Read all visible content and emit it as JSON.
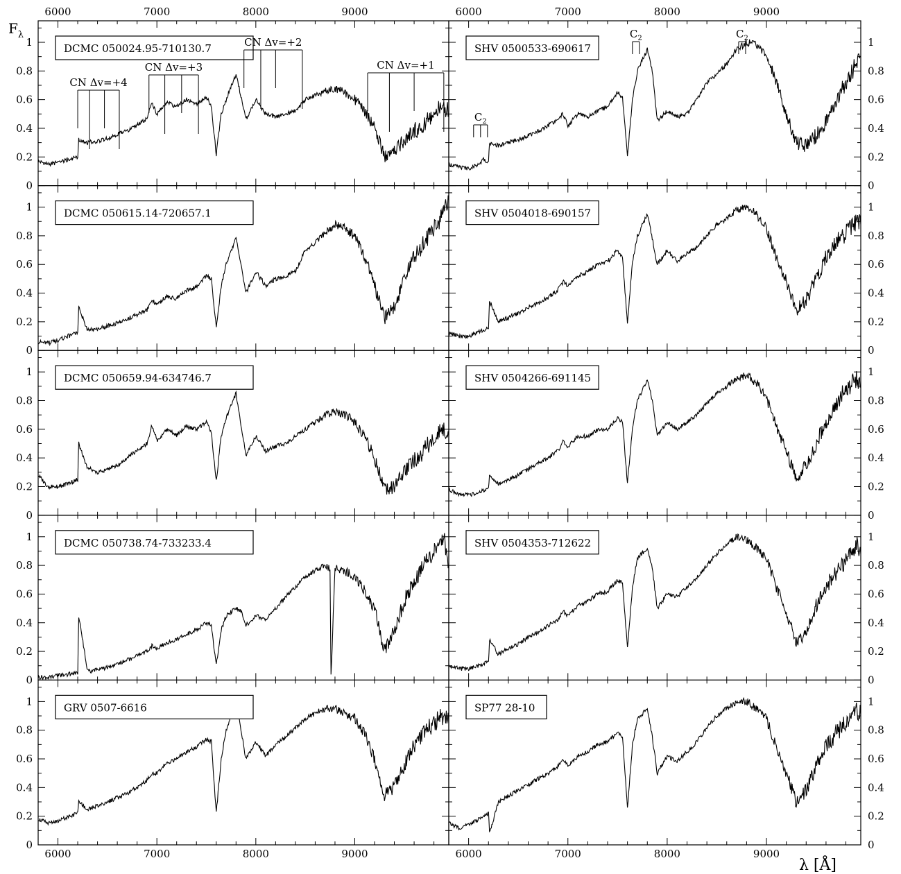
{
  "figure": {
    "ylabel_main": "F",
    "ylabel_sub": "λ",
    "xlabel": "λ [Å]",
    "x_ticks": [
      "6000",
      "7000",
      "8000",
      "9000"
    ],
    "y_ticks": [
      "0",
      "0.2",
      "0.4",
      "0.6",
      "0.8",
      "1"
    ]
  },
  "chart_data": {
    "type": "line",
    "layout": "5 rows x 2 columns of spectra, shared axes",
    "xlim": [
      5800,
      9950
    ],
    "ylim": [
      0,
      1.15
    ],
    "x_ticks": [
      6000,
      7000,
      8000,
      9000
    ],
    "y_ticks": [
      0,
      0.2,
      0.4,
      0.6,
      0.8,
      1
    ],
    "xlabel": "λ [Å]",
    "ylabel": "Fλ",
    "grid": false,
    "panels": [
      {
        "name": "DCMC 050024.95-710130.7",
        "column": "left",
        "row": 1,
        "x": [
          5800,
          5900,
          6000,
          6100,
          6200,
          6210,
          6300,
          6400,
          6500,
          6600,
          6700,
          6800,
          6900,
          6950,
          7000,
          7100,
          7200,
          7300,
          7400,
          7500,
          7550,
          7600,
          7650,
          7700,
          7800,
          7850,
          7900,
          8000,
          8100,
          8200,
          8300,
          8400,
          8500,
          8600,
          8700,
          8800,
          8900,
          9000,
          9100,
          9200,
          9300,
          9400,
          9500,
          9600,
          9700,
          9800,
          9900,
          9950
        ],
        "y": [
          0.17,
          0.15,
          0.16,
          0.18,
          0.2,
          0.32,
          0.3,
          0.31,
          0.33,
          0.36,
          0.38,
          0.42,
          0.47,
          0.58,
          0.5,
          0.58,
          0.55,
          0.6,
          0.57,
          0.62,
          0.55,
          0.22,
          0.5,
          0.6,
          0.78,
          0.62,
          0.46,
          0.6,
          0.5,
          0.48,
          0.5,
          0.52,
          0.6,
          0.63,
          0.66,
          0.68,
          0.65,
          0.6,
          0.52,
          0.4,
          0.2,
          0.25,
          0.32,
          0.38,
          0.42,
          0.5,
          0.55,
          0.5
        ],
        "annotations": [
          {
            "label": "CN Δv=+4",
            "lines_x": [
              6200,
              6320,
              6470,
              6620
            ]
          },
          {
            "label": "CN Δv=+3",
            "lines_x": [
              6920,
              7080,
              7250,
              7420
            ]
          },
          {
            "label": "CN Δv=+2",
            "lines_x": [
              7880,
              8050,
              8200,
              8470
            ]
          },
          {
            "label": "CN Δv=+1",
            "lines_x": [
              9130,
              9350,
              9600,
              9900
            ]
          }
        ]
      },
      {
        "name": "DCMC 050615.14-720657.1",
        "column": "left",
        "row": 2,
        "x": [
          5800,
          5900,
          6000,
          6100,
          6200,
          6210,
          6300,
          6400,
          6500,
          6600,
          6700,
          6800,
          6900,
          6950,
          7000,
          7100,
          7200,
          7300,
          7400,
          7500,
          7550,
          7600,
          7650,
          7700,
          7800,
          7850,
          7900,
          8000,
          8100,
          8200,
          8300,
          8400,
          8500,
          8600,
          8700,
          8800,
          8900,
          9000,
          9100,
          9200,
          9300,
          9400,
          9500,
          9600,
          9700,
          9800,
          9900,
          9950
        ],
        "y": [
          0.06,
          0.05,
          0.07,
          0.1,
          0.12,
          0.3,
          0.14,
          0.15,
          0.17,
          0.19,
          0.22,
          0.25,
          0.28,
          0.35,
          0.32,
          0.38,
          0.36,
          0.42,
          0.44,
          0.52,
          0.5,
          0.16,
          0.45,
          0.6,
          0.78,
          0.6,
          0.4,
          0.55,
          0.45,
          0.5,
          0.52,
          0.55,
          0.7,
          0.75,
          0.82,
          0.88,
          0.85,
          0.8,
          0.65,
          0.45,
          0.22,
          0.3,
          0.5,
          0.65,
          0.75,
          0.85,
          0.95,
          1.05
        ]
      },
      {
        "name": "DCMC 050659.94-634746.7",
        "column": "left",
        "row": 3,
        "x": [
          5800,
          5900,
          6000,
          6100,
          6200,
          6210,
          6300,
          6400,
          6500,
          6600,
          6700,
          6800,
          6900,
          6950,
          7000,
          7100,
          7200,
          7300,
          7400,
          7500,
          7550,
          7600,
          7650,
          7700,
          7800,
          7850,
          7900,
          8000,
          8100,
          8200,
          8300,
          8400,
          8500,
          8600,
          8700,
          8800,
          8900,
          9000,
          9100,
          9200,
          9300,
          9400,
          9500,
          9600,
          9700,
          9800,
          9900,
          9950
        ],
        "y": [
          0.28,
          0.2,
          0.2,
          0.22,
          0.25,
          0.5,
          0.33,
          0.3,
          0.32,
          0.35,
          0.4,
          0.45,
          0.5,
          0.63,
          0.52,
          0.6,
          0.56,
          0.62,
          0.6,
          0.65,
          0.58,
          0.24,
          0.55,
          0.68,
          0.85,
          0.62,
          0.42,
          0.55,
          0.45,
          0.48,
          0.5,
          0.55,
          0.6,
          0.65,
          0.7,
          0.72,
          0.7,
          0.65,
          0.55,
          0.4,
          0.18,
          0.2,
          0.3,
          0.38,
          0.45,
          0.55,
          0.6,
          0.55
        ]
      },
      {
        "name": "DCMC 050738.74-733233.4",
        "column": "left",
        "row": 4,
        "x": [
          5800,
          5900,
          6000,
          6100,
          6200,
          6210,
          6300,
          6400,
          6500,
          6600,
          6700,
          6800,
          6900,
          6950,
          7000,
          7100,
          7200,
          7300,
          7400,
          7500,
          7550,
          7600,
          7650,
          7700,
          7800,
          7850,
          7900,
          8000,
          8100,
          8200,
          8300,
          8400,
          8500,
          8600,
          8700,
          8750,
          8760,
          8800,
          8900,
          9000,
          9100,
          9200,
          9300,
          9400,
          9500,
          9600,
          9700,
          9800,
          9900,
          9950
        ],
        "y": [
          0.02,
          0.02,
          0.03,
          0.04,
          0.05,
          0.45,
          0.06,
          0.07,
          0.09,
          0.11,
          0.14,
          0.17,
          0.2,
          0.24,
          0.22,
          0.26,
          0.28,
          0.32,
          0.35,
          0.4,
          0.38,
          0.1,
          0.35,
          0.45,
          0.5,
          0.48,
          0.38,
          0.45,
          0.42,
          0.5,
          0.58,
          0.65,
          0.72,
          0.76,
          0.8,
          0.78,
          0.02,
          0.78,
          0.76,
          0.72,
          0.62,
          0.5,
          0.2,
          0.35,
          0.55,
          0.7,
          0.8,
          0.9,
          1.0,
          0.8
        ]
      },
      {
        "name": "GRV 0507-6616",
        "column": "left",
        "row": 5,
        "x": [
          5800,
          5900,
          6000,
          6100,
          6200,
          6210,
          6300,
          6400,
          6500,
          6600,
          6700,
          6800,
          6900,
          6950,
          7000,
          7100,
          7200,
          7300,
          7400,
          7500,
          7550,
          7600,
          7650,
          7700,
          7800,
          7850,
          7900,
          8000,
          8100,
          8200,
          8300,
          8400,
          8500,
          8600,
          8700,
          8800,
          8900,
          9000,
          9100,
          9200,
          9300,
          9400,
          9500,
          9600,
          9700,
          9800,
          9900,
          9950
        ],
        "y": [
          0.18,
          0.15,
          0.17,
          0.19,
          0.22,
          0.3,
          0.25,
          0.27,
          0.3,
          0.33,
          0.36,
          0.4,
          0.45,
          0.5,
          0.5,
          0.57,
          0.6,
          0.65,
          0.68,
          0.74,
          0.72,
          0.22,
          0.6,
          0.8,
          1.0,
          0.8,
          0.6,
          0.72,
          0.62,
          0.7,
          0.75,
          0.82,
          0.88,
          0.92,
          0.95,
          0.95,
          0.92,
          0.88,
          0.78,
          0.6,
          0.35,
          0.4,
          0.55,
          0.7,
          0.78,
          0.85,
          0.9,
          0.85
        ]
      },
      {
        "name": "SHV 0500533-690617",
        "column": "right",
        "row": 1,
        "x": [
          5800,
          5900,
          6000,
          6100,
          6150,
          6200,
          6210,
          6300,
          6400,
          6500,
          6600,
          6700,
          6800,
          6900,
          6950,
          7000,
          7100,
          7200,
          7300,
          7400,
          7500,
          7550,
          7600,
          7650,
          7700,
          7800,
          7850,
          7900,
          8000,
          8100,
          8200,
          8300,
          8400,
          8500,
          8600,
          8700,
          8800,
          8900,
          9000,
          9100,
          9200,
          9300,
          9400,
          9500,
          9600,
          9700,
          9800,
          9900,
          9950
        ],
        "y": [
          0.15,
          0.13,
          0.12,
          0.15,
          0.18,
          0.16,
          0.3,
          0.28,
          0.3,
          0.32,
          0.35,
          0.38,
          0.42,
          0.46,
          0.5,
          0.42,
          0.5,
          0.48,
          0.52,
          0.55,
          0.65,
          0.62,
          0.2,
          0.6,
          0.8,
          0.95,
          0.8,
          0.45,
          0.52,
          0.48,
          0.5,
          0.6,
          0.72,
          0.78,
          0.85,
          0.95,
          1.0,
          0.98,
          0.92,
          0.72,
          0.5,
          0.3,
          0.28,
          0.35,
          0.45,
          0.6,
          0.72,
          0.85,
          0.9
        ],
        "annotations": [
          {
            "label": "C2",
            "lines_x": [
              6050,
              6120,
              6190
            ]
          },
          {
            "label": "C2",
            "lines_x": [
              7650,
              7720
            ]
          },
          {
            "label": "C2",
            "lines_x": [
              8720,
              8790
            ]
          }
        ]
      },
      {
        "name": "SHV 0504018-690157",
        "column": "right",
        "row": 2,
        "x": [
          5800,
          5900,
          6000,
          6100,
          6200,
          6210,
          6300,
          6400,
          6500,
          6600,
          6700,
          6800,
          6900,
          6950,
          7000,
          7100,
          7200,
          7300,
          7400,
          7500,
          7550,
          7600,
          7650,
          7700,
          7800,
          7850,
          7900,
          8000,
          8100,
          8200,
          8300,
          8400,
          8500,
          8600,
          8700,
          8800,
          8900,
          9000,
          9100,
          9200,
          9300,
          9400,
          9500,
          9600,
          9700,
          9800,
          9900,
          9950
        ],
        "y": [
          0.12,
          0.1,
          0.1,
          0.13,
          0.15,
          0.35,
          0.2,
          0.23,
          0.26,
          0.3,
          0.33,
          0.37,
          0.42,
          0.48,
          0.45,
          0.52,
          0.55,
          0.6,
          0.62,
          0.7,
          0.65,
          0.18,
          0.62,
          0.8,
          0.95,
          0.78,
          0.6,
          0.7,
          0.62,
          0.68,
          0.72,
          0.8,
          0.88,
          0.92,
          0.98,
          1.0,
          0.95,
          0.85,
          0.65,
          0.48,
          0.28,
          0.35,
          0.5,
          0.65,
          0.75,
          0.82,
          0.9,
          0.88
        ]
      },
      {
        "name": "SHV 0504266-691145",
        "column": "right",
        "row": 3,
        "x": [
          5800,
          5900,
          6000,
          6100,
          6200,
          6210,
          6300,
          6400,
          6500,
          6600,
          6700,
          6800,
          6900,
          6950,
          7000,
          7100,
          7200,
          7300,
          7400,
          7500,
          7550,
          7600,
          7650,
          7700,
          7800,
          7850,
          7900,
          8000,
          8100,
          8200,
          8300,
          8400,
          8500,
          8600,
          8700,
          8800,
          8900,
          9000,
          9100,
          9200,
          9300,
          9400,
          9500,
          9600,
          9700,
          9800,
          9900,
          9950
        ],
        "y": [
          0.18,
          0.15,
          0.14,
          0.16,
          0.18,
          0.28,
          0.22,
          0.25,
          0.28,
          0.32,
          0.36,
          0.4,
          0.45,
          0.52,
          0.48,
          0.55,
          0.55,
          0.6,
          0.6,
          0.68,
          0.65,
          0.22,
          0.6,
          0.8,
          0.95,
          0.8,
          0.55,
          0.65,
          0.6,
          0.65,
          0.7,
          0.78,
          0.85,
          0.9,
          0.95,
          0.98,
          0.92,
          0.82,
          0.62,
          0.45,
          0.25,
          0.35,
          0.5,
          0.65,
          0.78,
          0.88,
          0.95,
          0.9
        ]
      },
      {
        "name": "SHV 0504353-712622",
        "column": "right",
        "row": 4,
        "x": [
          5800,
          5900,
          6000,
          6100,
          6200,
          6210,
          6300,
          6400,
          6500,
          6600,
          6700,
          6800,
          6900,
          6950,
          7000,
          7100,
          7200,
          7300,
          7400,
          7500,
          7550,
          7600,
          7650,
          7700,
          7800,
          7850,
          7900,
          8000,
          8100,
          8200,
          8300,
          8400,
          8500,
          8600,
          8700,
          8800,
          8900,
          9000,
          9100,
          9200,
          9300,
          9400,
          9500,
          9600,
          9700,
          9800,
          9900,
          9950
        ],
        "y": [
          0.1,
          0.08,
          0.08,
          0.1,
          0.13,
          0.28,
          0.18,
          0.22,
          0.25,
          0.3,
          0.33,
          0.38,
          0.42,
          0.48,
          0.45,
          0.52,
          0.55,
          0.6,
          0.62,
          0.7,
          0.68,
          0.22,
          0.65,
          0.85,
          0.92,
          0.78,
          0.5,
          0.6,
          0.58,
          0.65,
          0.72,
          0.8,
          0.88,
          0.95,
          1.0,
          0.98,
          0.92,
          0.85,
          0.65,
          0.48,
          0.25,
          0.35,
          0.52,
          0.65,
          0.75,
          0.82,
          0.95,
          0.88
        ]
      },
      {
        "name": "SP77 28-10",
        "column": "right",
        "row": 5,
        "x": [
          5800,
          5900,
          6000,
          6100,
          6200,
          6210,
          6300,
          6400,
          6500,
          6600,
          6700,
          6800,
          6900,
          6950,
          7000,
          7100,
          7200,
          7300,
          7400,
          7500,
          7550,
          7600,
          7650,
          7700,
          7800,
          7850,
          7900,
          8000,
          8100,
          8200,
          8300,
          8400,
          8500,
          8600,
          8700,
          8800,
          8900,
          9000,
          9100,
          9200,
          9300,
          9400,
          9500,
          9600,
          9700,
          9800,
          9900,
          9950
        ],
        "y": [
          0.15,
          0.12,
          0.14,
          0.18,
          0.22,
          0.08,
          0.3,
          0.34,
          0.38,
          0.42,
          0.46,
          0.5,
          0.55,
          0.6,
          0.55,
          0.62,
          0.65,
          0.7,
          0.72,
          0.78,
          0.75,
          0.25,
          0.7,
          0.88,
          0.95,
          0.75,
          0.5,
          0.62,
          0.58,
          0.65,
          0.72,
          0.82,
          0.9,
          0.95,
          1.0,
          1.0,
          0.95,
          0.88,
          0.68,
          0.5,
          0.3,
          0.38,
          0.55,
          0.68,
          0.78,
          0.85,
          0.95,
          0.9
        ]
      }
    ]
  }
}
